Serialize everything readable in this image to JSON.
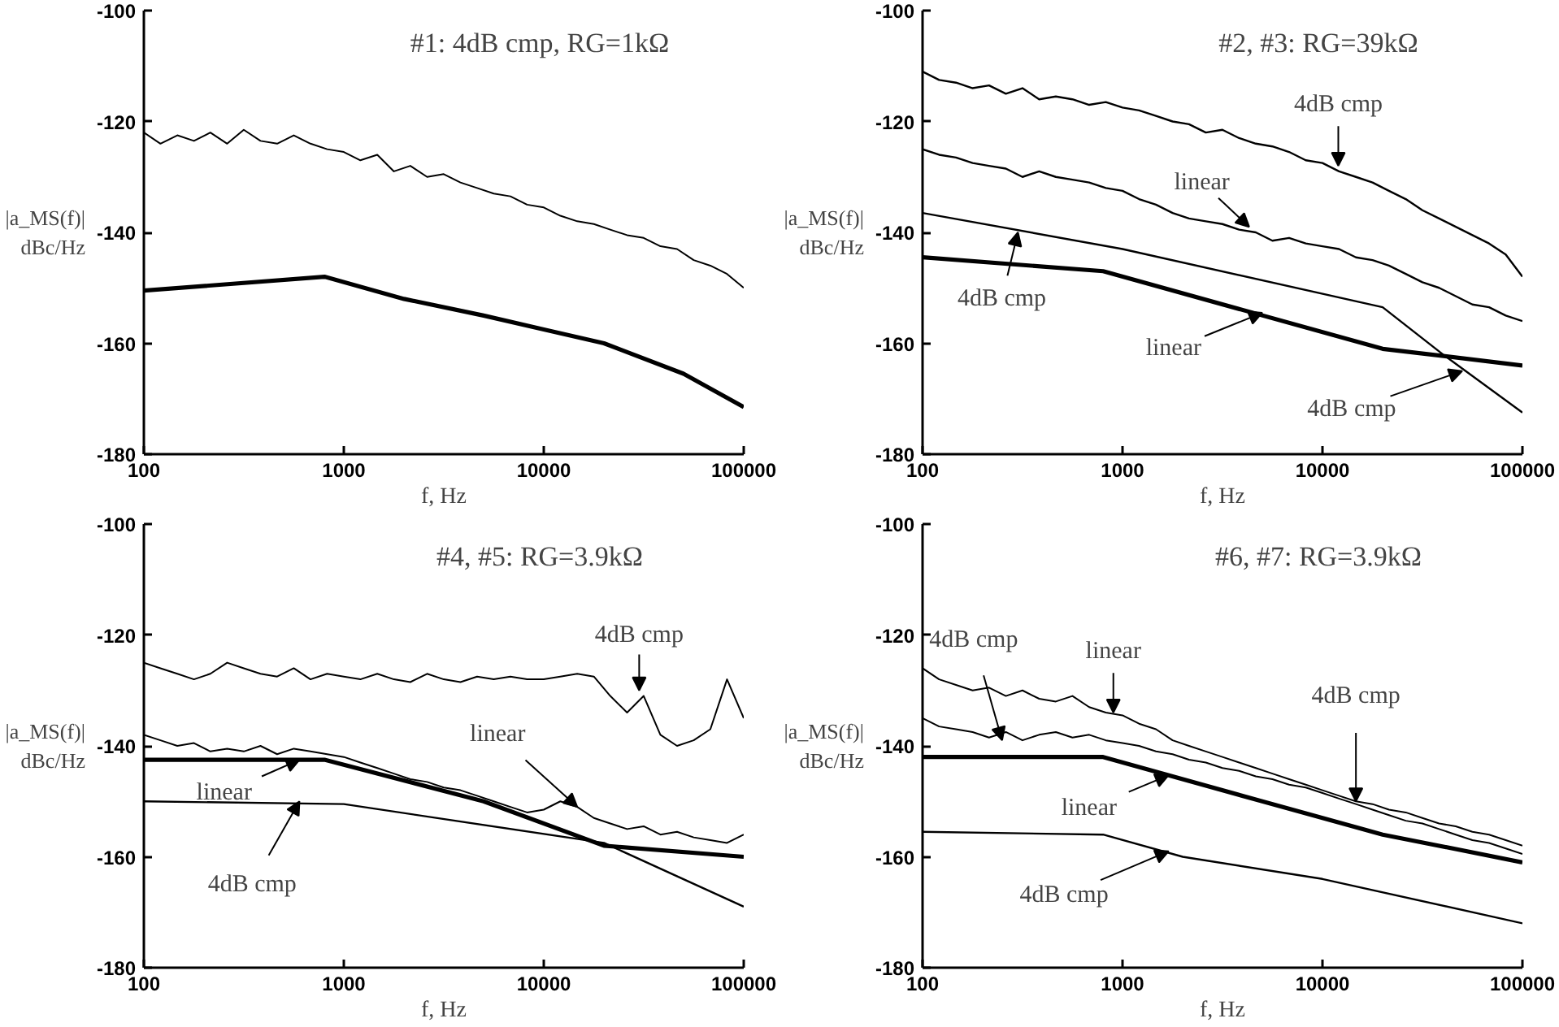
{
  "chart_data": [
    {
      "type": "line",
      "title": "#1: 4dB cmp, RG=1kΩ",
      "ylabel": "|a_MS(f)|\ndBc/Hz",
      "xlabel": "f, Hz",
      "log": "x",
      "grid": false,
      "xlim": [
        100,
        100000
      ],
      "ylim": [
        -180,
        -100
      ],
      "xticks": [
        100,
        1000,
        10000,
        100000
      ],
      "yticks": [
        -180,
        -160,
        -140,
        -120,
        -100
      ],
      "x": [
        100,
        121,
        147,
        178,
        215,
        261,
        316,
        383,
        464,
        562,
        681,
        825,
        1000,
        1210,
        1470,
        1780,
        2150,
        2610,
        3160,
        3830,
        4640,
        5620,
        6810,
        8250,
        10000,
        12100,
        14700,
        17800,
        21500,
        26100,
        31600,
        38300,
        46400,
        56200,
        68100,
        82500,
        100000
      ],
      "series": [
        {
          "color": "#000000",
          "values": [
            -122,
            -124,
            -122.5,
            -123.5,
            -122,
            -124,
            -121.5,
            -123.5,
            -124,
            -122.5,
            -124,
            -125,
            -125.5,
            -127,
            -126,
            -129,
            -128,
            -130,
            -129.5,
            -131,
            -132,
            -133,
            -133.5,
            -135,
            -135.5,
            -137,
            -138,
            -138.5,
            -139.5,
            -140.5,
            -141,
            -142.5,
            -143,
            -145,
            -146,
            -147.5,
            -150
          ]
        },
        {
          "color": "#000000",
          "x": [
            100,
            800,
            2000,
            5000,
            10000,
            20000,
            50000,
            100000
          ],
          "values": [
            -150.5,
            -148,
            -152,
            -155,
            -157.5,
            -160,
            -165.5,
            -171.5
          ]
        }
      ]
    },
    {
      "type": "line",
      "title": "#2, #3: RG=39kΩ",
      "ylabel": "|a_MS(f)|\ndBc/Hz",
      "xlabel": "f, Hz",
      "log": "x",
      "grid": false,
      "xlim": [
        100,
        100000
      ],
      "ylim": [
        -180,
        -100
      ],
      "xticks": [
        100,
        1000,
        10000,
        100000
      ],
      "yticks": [
        -180,
        -160,
        -140,
        -120,
        -100
      ],
      "x": [
        100,
        121,
        147,
        178,
        215,
        261,
        316,
        383,
        464,
        562,
        681,
        825,
        1000,
        1210,
        1470,
        1780,
        2150,
        2610,
        3160,
        3830,
        4640,
        5620,
        6810,
        8250,
        10000,
        12100,
        14700,
        17800,
        21500,
        26100,
        31600,
        38300,
        46400,
        56200,
        68100,
        82500,
        100000
      ],
      "series": [
        {
          "color": "#000000",
          "values": [
            -111,
            -112.5,
            -113,
            -114,
            -113.5,
            -115,
            -114,
            -116,
            -115.5,
            -116,
            -117,
            -116.5,
            -117.5,
            -118,
            -119,
            -120,
            -120.5,
            -122,
            -121.5,
            -123,
            -124,
            -124.5,
            -125.5,
            -127,
            -127.5,
            -129,
            -130,
            -131,
            -132.5,
            -134,
            -136,
            -137.5,
            -139,
            -140.5,
            -142,
            -144,
            -148
          ]
        },
        {
          "color": "#000000",
          "values": [
            -125,
            -126,
            -126.5,
            -127.5,
            -128,
            -128.5,
            -130,
            -129,
            -130,
            -130.5,
            -131,
            -132,
            -132.5,
            -134,
            -135,
            -136.5,
            -137.5,
            -138,
            -138.5,
            -139.5,
            -140,
            -141.5,
            -141,
            -142,
            -142.5,
            -143,
            -144.5,
            -145,
            -146,
            -147.5,
            -149,
            -150,
            -151.5,
            -153,
            -153.5,
            -155,
            -156
          ]
        },
        {
          "color": "#000000",
          "x": [
            100,
            1000,
            20000,
            40000,
            100000
          ],
          "values": [
            -136.5,
            -143,
            -153.5,
            -162,
            -172.5
          ]
        },
        {
          "color": "#000000",
          "x": [
            100,
            800,
            20000,
            100000
          ],
          "values": [
            -144.5,
            -147,
            -161,
            -164
          ]
        }
      ],
      "annotations": [
        {
          "text": "4dB cmp",
          "x": 12000,
          "y": -128
        },
        {
          "text": "linear",
          "x": 4300,
          "y": -139
        },
        {
          "text": "4dB cmp",
          "x": 300,
          "y": -140
        },
        {
          "text": "linear",
          "x": 5000,
          "y": -154.5
        },
        {
          "text": "4dB cmp",
          "x": 50000,
          "y": -165
        }
      ]
    },
    {
      "type": "line",
      "title": "#4, #5: RG=3.9kΩ",
      "ylabel": "|a_MS(f)|\ndBc/Hz",
      "xlabel": "f, Hz",
      "log": "x",
      "grid": false,
      "xlim": [
        100,
        100000
      ],
      "ylim": [
        -180,
        -100
      ],
      "xticks": [
        100,
        1000,
        10000,
        100000
      ],
      "yticks": [
        -180,
        -160,
        -140,
        -120,
        -100
      ],
      "x": [
        100,
        121,
        147,
        178,
        215,
        261,
        316,
        383,
        464,
        562,
        681,
        825,
        1000,
        1210,
        1470,
        1780,
        2150,
        2610,
        3160,
        3830,
        4640,
        5620,
        6810,
        8250,
        10000,
        12100,
        14700,
        17800,
        21500,
        26100,
        31600,
        38300,
        46400,
        56200,
        68100,
        82500,
        100000
      ],
      "series": [
        {
          "color": "#000000",
          "values": [
            -125,
            -126,
            -127,
            -128,
            -127,
            -125,
            -126,
            -127,
            -127.5,
            -126,
            -128,
            -127,
            -127.5,
            -128,
            -127,
            -128,
            -128.5,
            -127,
            -128,
            -128.5,
            -127.5,
            -128,
            -127.5,
            -128,
            -128,
            -127.5,
            -127,
            -127.5,
            -131,
            -134,
            -131,
            -138,
            -140,
            -139,
            -137,
            -128,
            -135
          ]
        },
        {
          "color": "#000000",
          "values": [
            -138,
            -139,
            -140,
            -139.5,
            -141,
            -140.5,
            -141,
            -140,
            -141.5,
            -140.5,
            -141,
            -141.5,
            -142,
            -143,
            -144,
            -145,
            -146,
            -146.5,
            -147.5,
            -148,
            -149,
            -150,
            -151,
            -152,
            -151.5,
            -150,
            -151,
            -153,
            -154,
            -155,
            -154.5,
            -156,
            -155.5,
            -156.5,
            -157,
            -157.5,
            -156
          ]
        },
        {
          "color": "#000000",
          "x": [
            100,
            800,
            5000,
            20000,
            100000
          ],
          "values": [
            -142.5,
            -142.5,
            -150,
            -158,
            -160
          ]
        },
        {
          "color": "#000000",
          "x": [
            100,
            1000,
            20000,
            100000
          ],
          "values": [
            -150,
            -150.5,
            -157.5,
            -169
          ]
        }
      ],
      "annotations": [
        {
          "text": "4dB cmp",
          "x": 30000,
          "y": -130
        },
        {
          "text": "linear",
          "x": 14700,
          "y": -151
        },
        {
          "text": "linear",
          "x": 600,
          "y": -142.5
        },
        {
          "text": "4dB cmp",
          "x": 600,
          "y": -150
        }
      ]
    },
    {
      "type": "line",
      "title": "#6, #7: RG=3.9kΩ",
      "ylabel": "|a_MS(f)|\ndBc/Hz",
      "xlabel": "f, Hz",
      "log": "x",
      "grid": false,
      "xlim": [
        100,
        100000
      ],
      "ylim": [
        -180,
        -100
      ],
      "xticks": [
        100,
        1000,
        10000,
        100000
      ],
      "yticks": [
        -180,
        -160,
        -140,
        -120,
        -100
      ],
      "x": [
        100,
        121,
        147,
        178,
        215,
        261,
        316,
        383,
        464,
        562,
        681,
        825,
        1000,
        1210,
        1470,
        1780,
        2150,
        2610,
        3160,
        3830,
        4640,
        5620,
        6810,
        8250,
        10000,
        12100,
        14700,
        17800,
        21500,
        26100,
        31600,
        38300,
        46400,
        56200,
        68100,
        82500,
        100000
      ],
      "series": [
        {
          "color": "#000000",
          "values": [
            -126,
            -128,
            -129,
            -130,
            -129.5,
            -131,
            -130,
            -131.5,
            -132,
            -131,
            -133,
            -134,
            -134.5,
            -136,
            -137,
            -139,
            -140,
            -141,
            -142,
            -143,
            -144,
            -145,
            -146,
            -147,
            -148,
            -149,
            -150,
            -150.5,
            -151.5,
            -152,
            -153,
            -154,
            -154.5,
            -155.5,
            -156,
            -157,
            -158
          ]
        },
        {
          "color": "#000000",
          "values": [
            -135,
            -136.5,
            -137,
            -137.5,
            -138.5,
            -137.5,
            -139,
            -138,
            -137.5,
            -138.5,
            -138,
            -139,
            -139.5,
            -140,
            -141,
            -141.5,
            -142.5,
            -143,
            -144,
            -144.5,
            -145.5,
            -146,
            -147,
            -147.5,
            -148.5,
            -149.5,
            -150.5,
            -151.5,
            -152.5,
            -153.5,
            -154,
            -155,
            -156,
            -157,
            -157.5,
            -158.5,
            -159.5
          ]
        },
        {
          "color": "#000000",
          "x": [
            100,
            800,
            5000,
            20000,
            100000
          ],
          "values": [
            -142,
            -142,
            -150,
            -156,
            -161
          ]
        },
        {
          "color": "#000000",
          "x": [
            100,
            800,
            2000,
            10000,
            100000
          ],
          "values": [
            -155.5,
            -156,
            -160,
            -164,
            -172
          ]
        }
      ],
      "annotations": [
        {
          "text": "4dB cmp",
          "x": 250,
          "y": -139
        },
        {
          "text": "linear",
          "x": 900,
          "y": -134
        },
        {
          "text": "4dB cmp",
          "x": 14700,
          "y": -150
        },
        {
          "text": "linear",
          "x": 1700,
          "y": -145.3
        },
        {
          "text": "4dB cmp",
          "x": 1700,
          "y": -159
        }
      ]
    }
  ]
}
